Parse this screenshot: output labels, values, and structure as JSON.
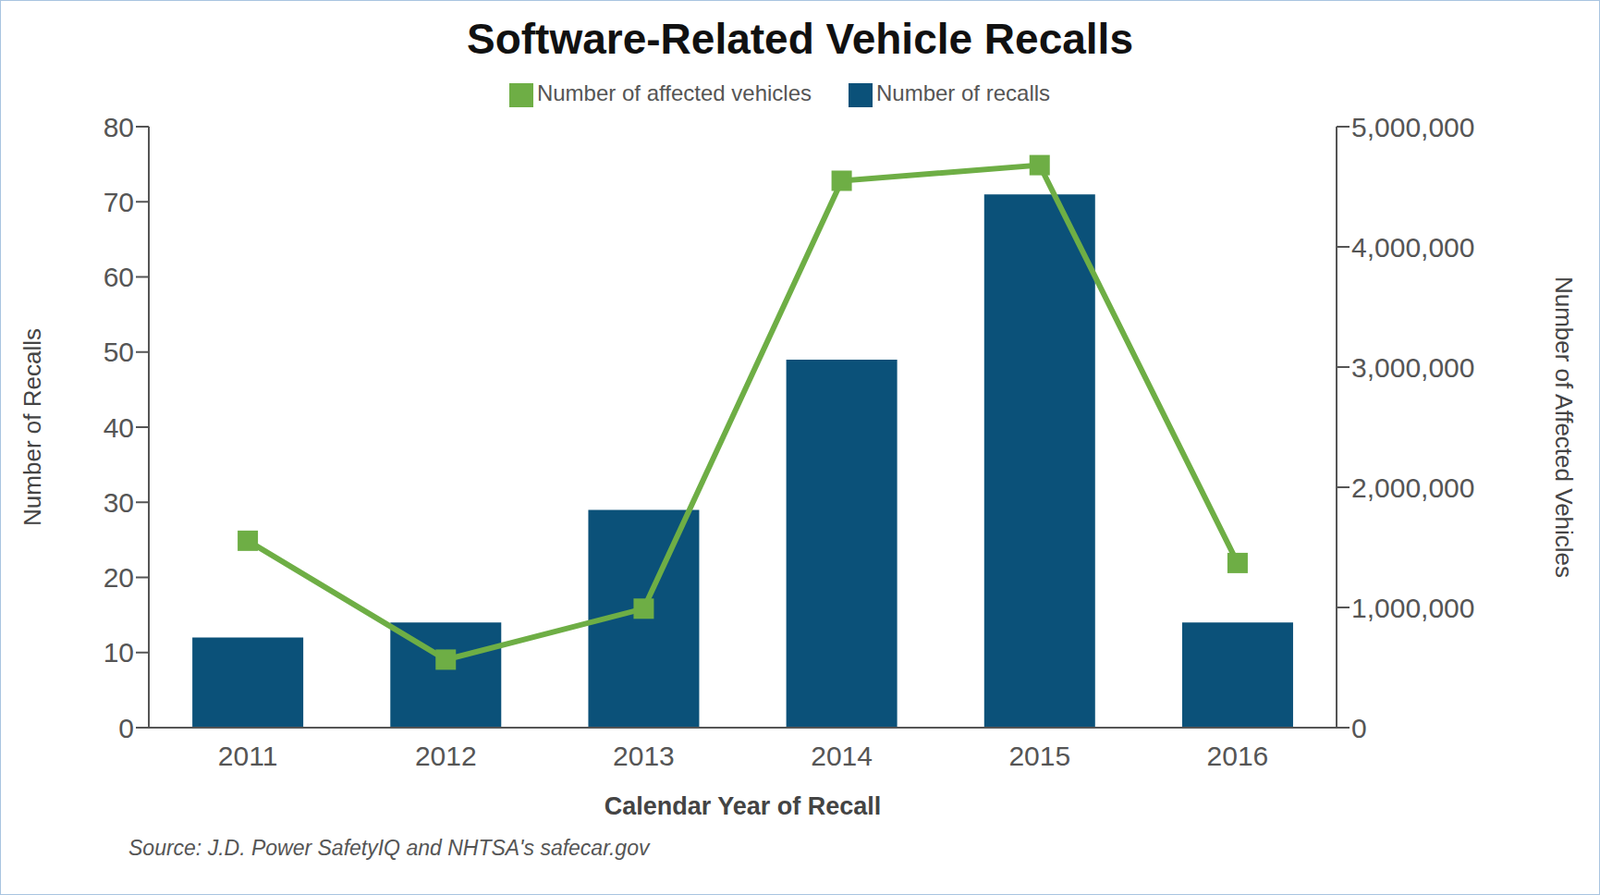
{
  "chart_data": {
    "type": "bar",
    "title": "Software-Related Vehicle Recalls",
    "categories": [
      "2011",
      "2012",
      "2013",
      "2014",
      "2015",
      "2016"
    ],
    "series": [
      {
        "name": "Number of recalls",
        "type": "bar",
        "color": "#0b5179",
        "values": [
          12,
          14,
          29,
          49,
          71,
          14
        ]
      },
      {
        "name": "Number of affected vehicles",
        "type": "line",
        "color": "#6eae45",
        "marker": "square",
        "axis": "y2",
        "values": [
          1555000,
          566000,
          990000,
          4550000,
          4680000,
          1370000
        ]
      }
    ],
    "x_label": "Calendar Year of Recall",
    "y_label": "Number of Recalls",
    "y2_label": "Number of Affected Vehicles",
    "ylim": [
      0,
      80
    ],
    "yticks": [
      0,
      10,
      20,
      30,
      40,
      50,
      60,
      70,
      80
    ],
    "y2lim": [
      0,
      5000000
    ],
    "y2ticks": [
      0,
      {
        "value": 1000000,
        "label": "1,000,000"
      },
      {
        "value": 2000000,
        "label": "2,000,000"
      },
      {
        "value": 3000000,
        "label": "3,000,000"
      },
      {
        "value": 4000000,
        "label": "4,000,000"
      },
      {
        "value": 5000000,
        "label": "5,000,000"
      }
    ],
    "legend": "top",
    "grid": false,
    "source": "Source: J.D. Power SafetyIQ and NHTSA's safecar.gov"
  }
}
